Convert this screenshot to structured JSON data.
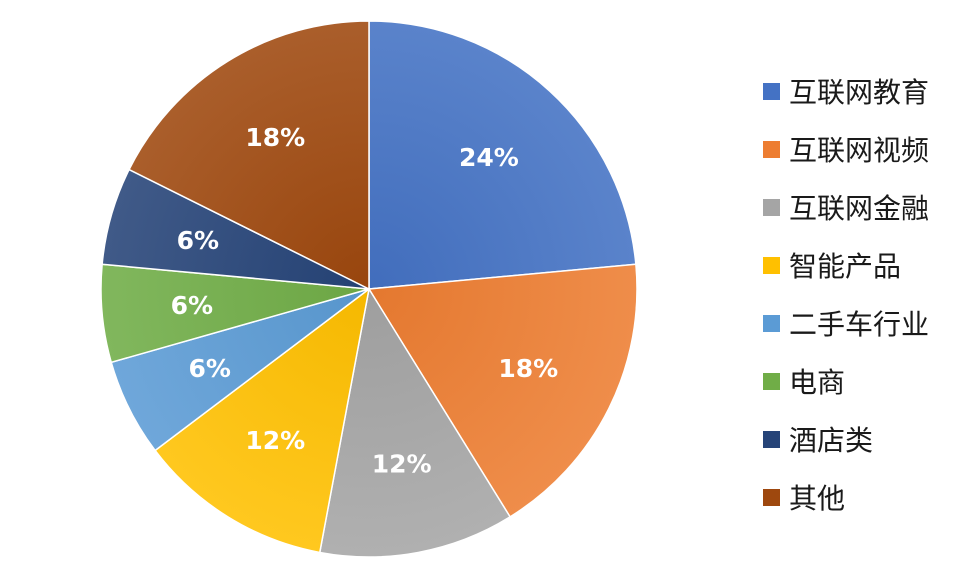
{
  "chart_data": {
    "type": "pie",
    "title": "",
    "start_angle_deg": 0,
    "direction": "clockwise",
    "legend_position": "right",
    "slices": [
      {
        "label": "互联网教育",
        "value": 24,
        "display": "24%",
        "color": "#4472c4"
      },
      {
        "label": "互联网视频",
        "value": 18,
        "display": "18%",
        "color": "#ed7d31"
      },
      {
        "label": "互联网金融",
        "value": 12,
        "display": "12%",
        "color": "#a5a5a5"
      },
      {
        "label": "智能产品",
        "value": 12,
        "display": "12%",
        "color": "#ffc000"
      },
      {
        "label": "二手车行业",
        "value": 6,
        "display": "6%",
        "color": "#5b9bd5"
      },
      {
        "label": "电商",
        "value": 6,
        "display": "6%",
        "color": "#70ad47"
      },
      {
        "label": "酒店类",
        "value": 6,
        "display": "6%",
        "color": "#264478"
      },
      {
        "label": "其他",
        "value": 18,
        "display": "18%",
        "color": "#9e480e"
      }
    ]
  }
}
